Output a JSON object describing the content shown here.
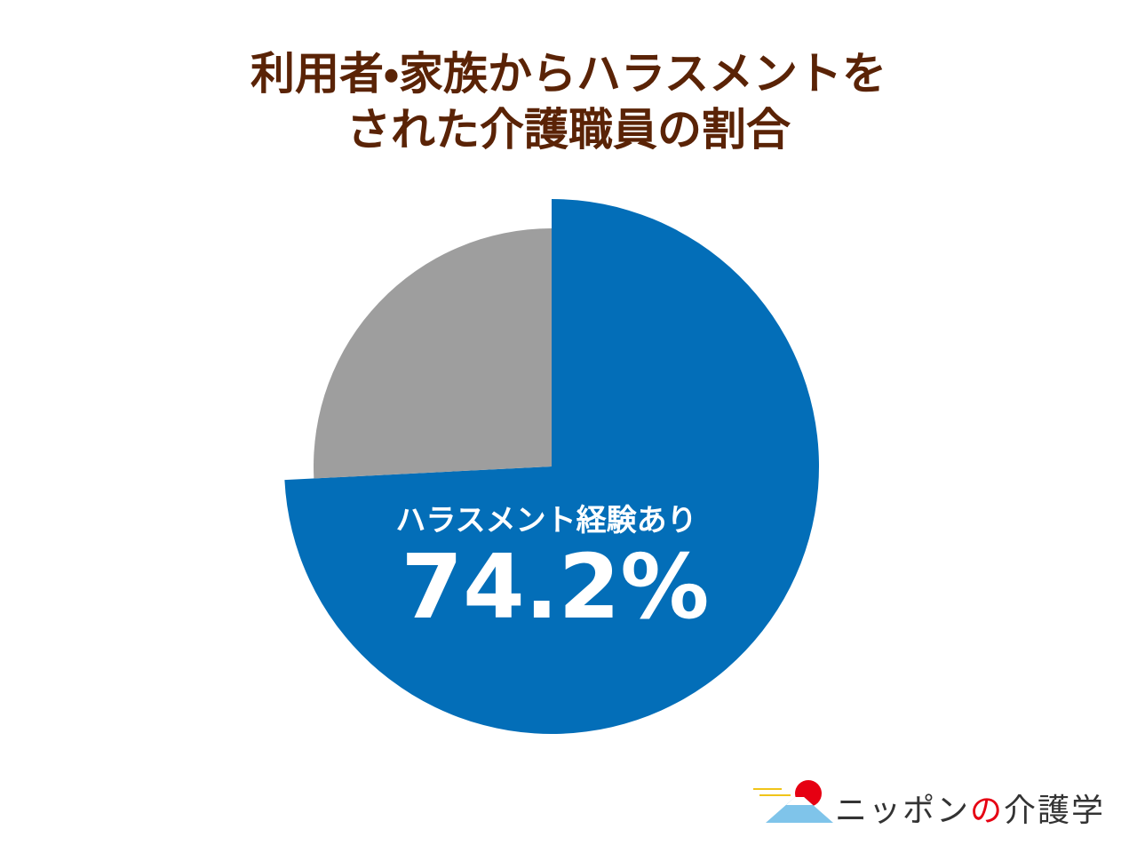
{
  "chart_data": {
    "type": "pie",
    "title": [
      "利用者・家族からハラスメントを",
      "された介護職員の割合"
    ],
    "categories": [
      "ハラスメント経験あり",
      null
    ],
    "values": [
      74.2,
      25.8
    ],
    "value_labels": [
      "74.2%",
      null
    ],
    "colors": [
      "#036eb8",
      "#9e9e9e"
    ]
  },
  "logo": [
    "ニッポン",
    "の",
    "介護学"
  ]
}
